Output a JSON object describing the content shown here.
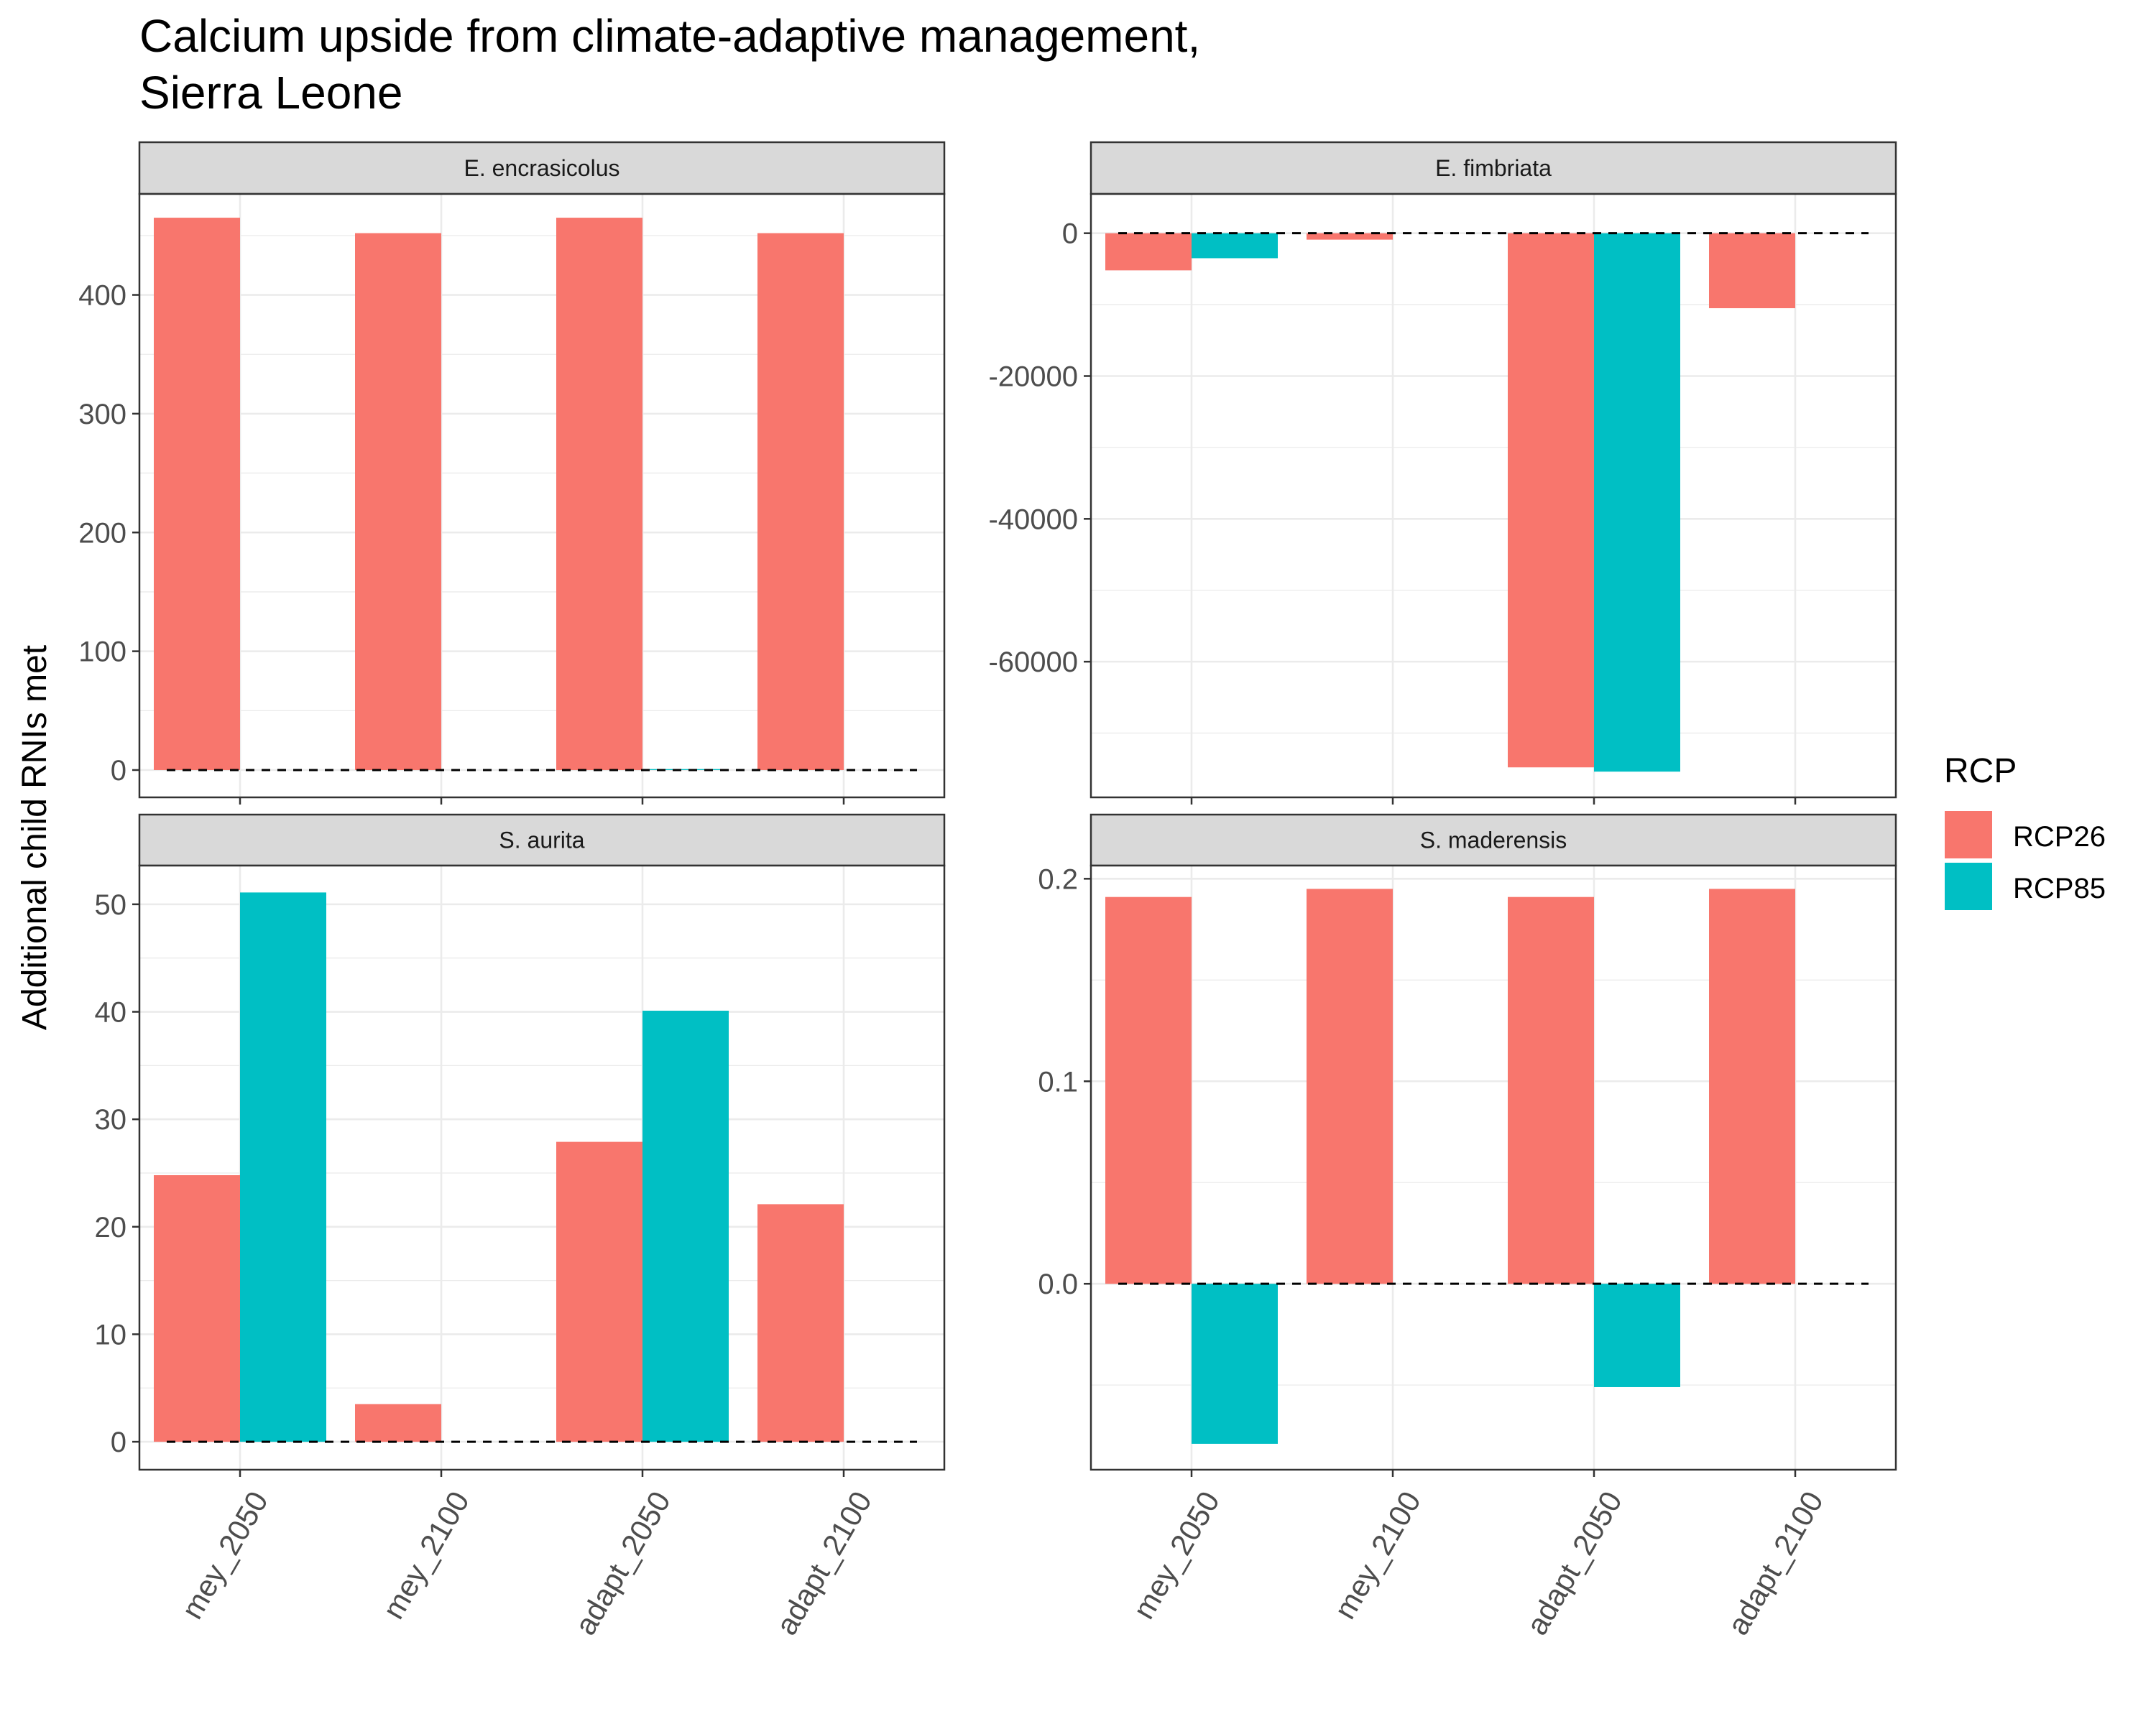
{
  "chart_data": {
    "type": "bar",
    "title_lines": [
      "Calcium upside from climate-adaptive management,",
      "Sierra Leone"
    ],
    "xlabel": "",
    "ylabel": "Additional child RNIs met",
    "categories": [
      "mey_2050",
      "mey_2100",
      "adapt_2050",
      "adapt_2100"
    ],
    "legend": {
      "title": "RCP",
      "position": "right",
      "entries": [
        {
          "name": "RCP26",
          "color": "#F8766D"
        },
        {
          "name": "RCP85",
          "color": "#00BFC4"
        }
      ]
    },
    "grid": true,
    "reference_line": 0,
    "panels": [
      {
        "name": "E. encrasicolus",
        "ylim": [
          -23,
          485
        ],
        "yticks": [
          0,
          100,
          200,
          300,
          400
        ],
        "ytick_labels": [
          "0",
          "100",
          "200",
          "300",
          "400"
        ],
        "series": [
          {
            "name": "RCP26",
            "values": [
              465,
              452,
              465,
              452
            ]
          },
          {
            "name": "RCP85",
            "values": [
              null,
              null,
              0.8,
              null
            ]
          }
        ]
      },
      {
        "name": "E. fimbriata",
        "ylim": [
          -79000,
          5500
        ],
        "yticks": [
          0,
          -20000,
          -40000,
          -60000
        ],
        "ytick_labels": [
          "0",
          "-20000",
          "-40000",
          "-60000"
        ],
        "series": [
          {
            "name": "RCP26",
            "values": [
              -5200,
              -900,
              -74800,
              -10500
            ]
          },
          {
            "name": "RCP85",
            "values": [
              -3500,
              null,
              -75400,
              null
            ]
          }
        ]
      },
      {
        "name": "S. aurita",
        "ylim": [
          -2.6,
          53.6
        ],
        "yticks": [
          0,
          10,
          20,
          30,
          40,
          50
        ],
        "ytick_labels": [
          "0",
          "10",
          "20",
          "30",
          "40",
          "50"
        ],
        "series": [
          {
            "name": "RCP26",
            "values": [
              24.8,
              3.5,
              27.9,
              22.1
            ]
          },
          {
            "name": "RCP85",
            "values": [
              51.1,
              null,
              40.1,
              null
            ]
          }
        ]
      },
      {
        "name": "S. maderensis",
        "ylim": [
          -0.0918,
          0.2065
        ],
        "yticks": [
          0.0,
          0.1,
          0.2
        ],
        "ytick_labels": [
          "0.0",
          "0.1",
          "0.2"
        ],
        "series": [
          {
            "name": "RCP26",
            "values": [
              0.191,
              0.195,
              0.191,
              0.195
            ]
          },
          {
            "name": "RCP85",
            "values": [
              -0.079,
              null,
              -0.051,
              null
            ]
          }
        ]
      }
    ]
  }
}
